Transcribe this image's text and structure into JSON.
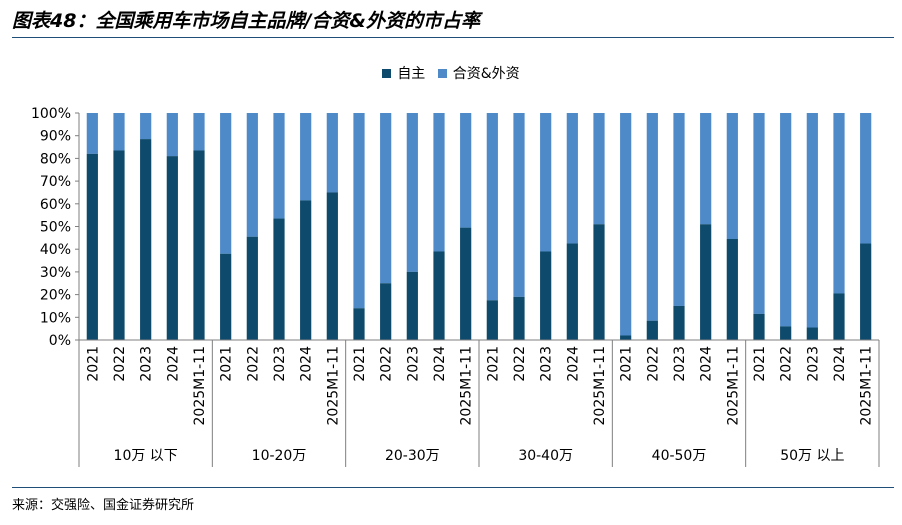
{
  "title": "图表48：全国乘用车市场自主品牌/合资&外资的市占率",
  "source": "来源：交强险、国金证券研究所",
  "colors": {
    "domestic": "#0d4a6b",
    "foreign": "#4e8ac8",
    "axis": "#7f7f7f"
  },
  "chart_data": {
    "type": "bar",
    "stacked": true,
    "percent": true,
    "ylim": [
      0,
      100
    ],
    "yticks": [
      "0%",
      "10%",
      "20%",
      "30%",
      "40%",
      "50%",
      "60%",
      "70%",
      "80%",
      "90%",
      "100%"
    ],
    "legend": [
      "自主",
      "合资&外资"
    ],
    "groups": [
      {
        "name": "10万 以下",
        "categories": [
          "2021",
          "2022",
          "2023",
          "2024",
          "2025M1-11"
        ],
        "domestic": [
          82,
          83.5,
          88.5,
          81,
          83.5
        ]
      },
      {
        "name": "10-20万",
        "categories": [
          "2021",
          "2022",
          "2023",
          "2024",
          "2025M1-11"
        ],
        "domestic": [
          38,
          45.5,
          53.5,
          61.5,
          65
        ]
      },
      {
        "name": "20-30万",
        "categories": [
          "2021",
          "2022",
          "2023",
          "2024",
          "2025M1-11"
        ],
        "domestic": [
          14,
          25,
          30,
          39,
          49.5
        ]
      },
      {
        "name": "30-40万",
        "categories": [
          "2021",
          "2022",
          "2023",
          "2024",
          "2025M1-11"
        ],
        "domestic": [
          17.5,
          19,
          39,
          42.5,
          51
        ]
      },
      {
        "name": "40-50万",
        "categories": [
          "2021",
          "2022",
          "2023",
          "2024",
          "2025M1-11"
        ],
        "domestic": [
          2,
          8.5,
          15,
          51,
          44.5
        ]
      },
      {
        "name": "50万 以上",
        "categories": [
          "2021",
          "2022",
          "2023",
          "2024",
          "2025M1-11"
        ],
        "domestic": [
          11.5,
          6,
          5.5,
          20.5,
          42.5
        ]
      }
    ],
    "series": [
      {
        "name": "自主",
        "key": "domestic"
      },
      {
        "name": "合资&外资",
        "key": "foreign",
        "note": "remainder to 100%"
      }
    ]
  }
}
